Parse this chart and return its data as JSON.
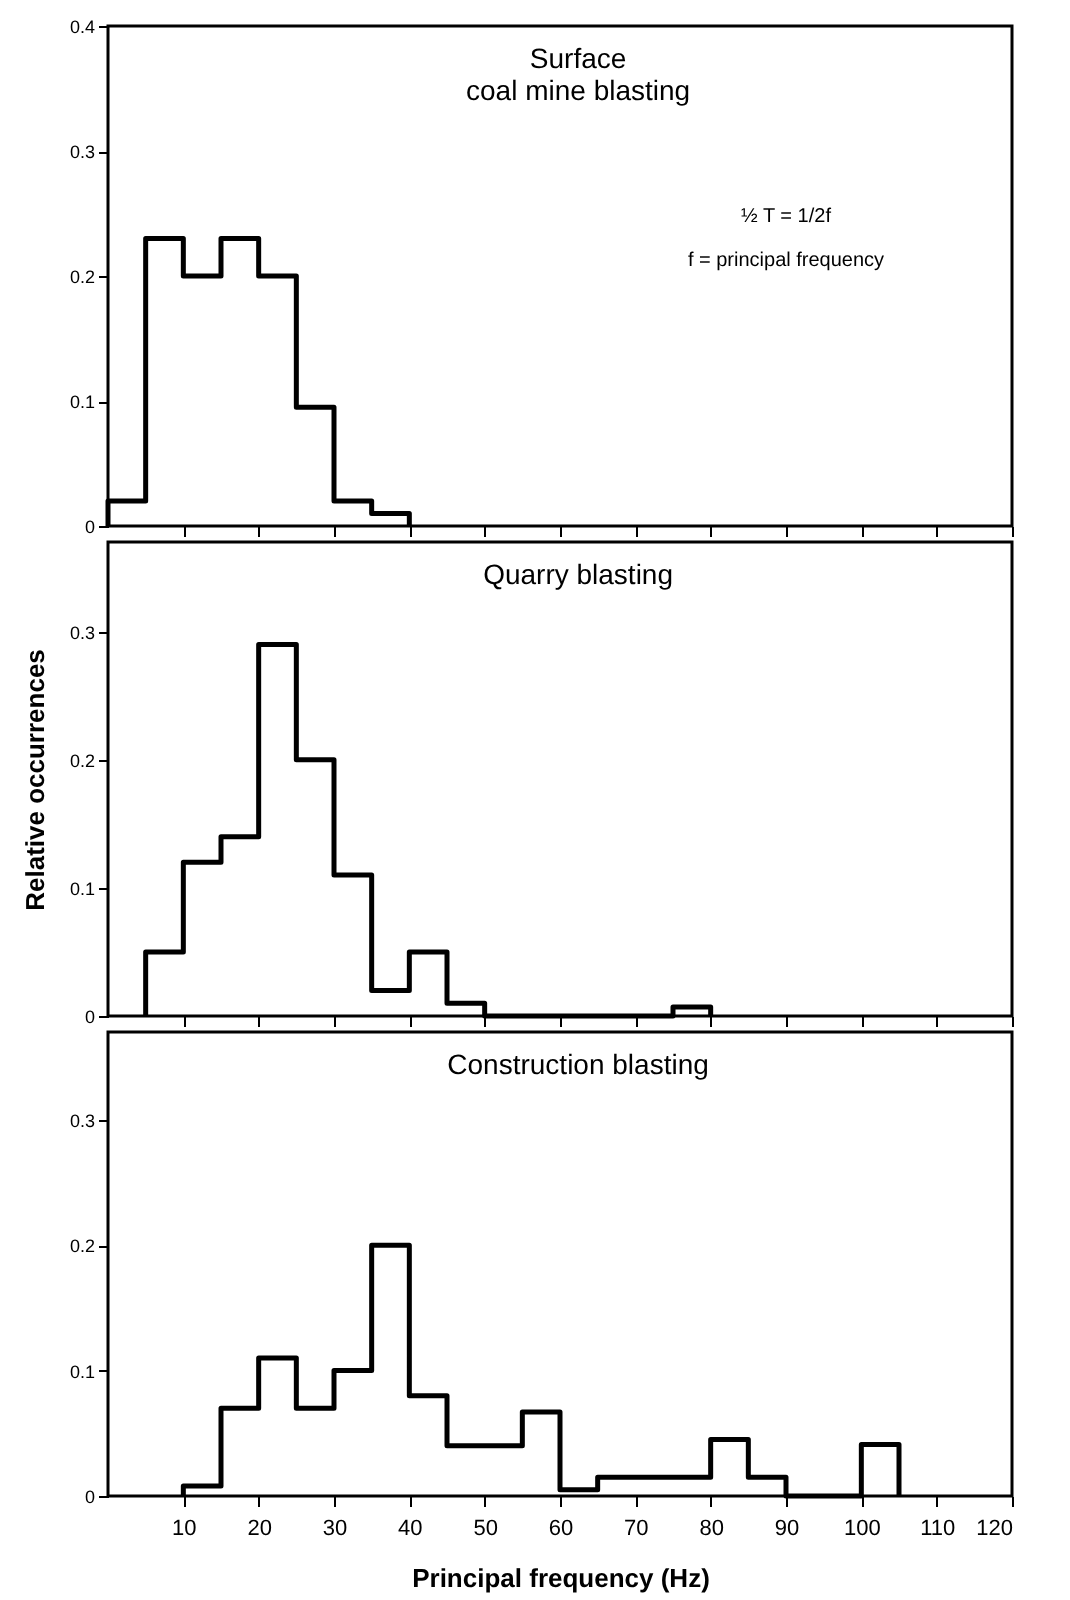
{
  "chart_data": [
    {
      "type": "histogram",
      "title": "Surface\ncoal mine blasting",
      "bins": [
        0,
        5,
        10,
        15,
        20,
        25,
        30,
        35,
        40
      ],
      "values": [
        0.02,
        0.23,
        0.2,
        0.23,
        0.2,
        0.095,
        0.02,
        0.01
      ],
      "color": "#000000",
      "xlim": [
        0,
        120
      ],
      "xticks": [
        10,
        20,
        30,
        40,
        50,
        60,
        70,
        80,
        90,
        100,
        110,
        120
      ],
      "ylim": [
        0,
        0.4
      ],
      "yticks": [
        0,
        0.1,
        0.2,
        0.3,
        0.4
      ],
      "annotations": [
        "½ T = 1/2f",
        "f = principal frequency"
      ],
      "tick_labels": "y",
      "grid": false
    },
    {
      "type": "histogram",
      "title": "Quarry blasting",
      "bins": [
        5,
        10,
        15,
        20,
        25,
        30,
        35,
        40,
        45,
        50,
        55,
        60,
        65,
        70,
        75,
        80
      ],
      "values": [
        0.05,
        0.12,
        0.14,
        0.29,
        0.2,
        0.11,
        0.02,
        0.05,
        0.01,
        0,
        0,
        0,
        0,
        0,
        0.007
      ],
      "color": "#000000",
      "ylabel": "Relative occurrences",
      "xlim": [
        0,
        120
      ],
      "xticks": [
        10,
        20,
        30,
        40,
        50,
        60,
        70,
        80,
        90,
        100,
        110,
        120
      ],
      "ylim": [
        0,
        0.37
      ],
      "yticks": [
        0,
        0.1,
        0.2,
        0.3
      ],
      "tick_labels": "y",
      "grid": false
    },
    {
      "type": "histogram",
      "title": "Construction blasting",
      "bins": [
        10,
        15,
        20,
        25,
        30,
        35,
        40,
        45,
        50,
        55,
        60,
        65,
        80,
        85,
        90,
        100,
        105
      ],
      "values": [
        0.008,
        0.07,
        0.11,
        0.07,
        0.1,
        0.2,
        0.08,
        0.04,
        0.04,
        0.067,
        0.005,
        0.015,
        0.045,
        0.015,
        0,
        0.041
      ],
      "color": "#000000",
      "xlabel": "Principal frequency (Hz)",
      "xlim": [
        0,
        120
      ],
      "xticks": [
        10,
        20,
        30,
        40,
        50,
        60,
        70,
        80,
        90,
        100,
        110,
        120
      ],
      "ylim": [
        0,
        0.37
      ],
      "yticks": [
        0,
        0.1,
        0.2,
        0.3
      ],
      "grid": false
    }
  ]
}
